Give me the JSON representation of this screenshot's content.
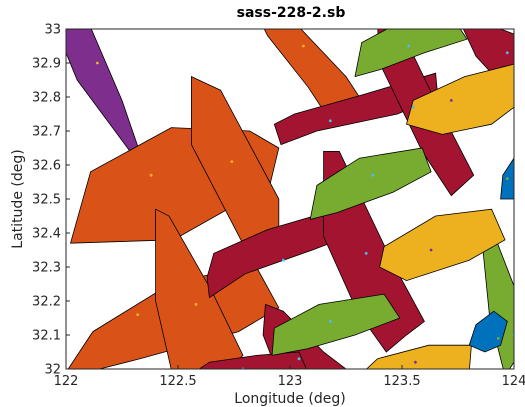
{
  "chart_data": {
    "type": "map",
    "title": "sass-228-2.sb",
    "xlabel": "Longitude (deg)",
    "ylabel": "Latitude (deg)",
    "xlim": [
      122,
      124
    ],
    "ylim": [
      32,
      33
    ],
    "x_ticks": [
      "122",
      "122.5",
      "123",
      "123.5",
      "124"
    ],
    "y_ticks": [
      "32",
      "32.1",
      "32.2",
      "32.3",
      "32.4",
      "32.5",
      "32.6",
      "32.7",
      "32.8",
      "32.9",
      "33"
    ],
    "grid": false,
    "colors": {
      "purple": "#7e2f8e",
      "orange": "#d95319",
      "red": "#a2142f",
      "green": "#77ac30",
      "yellow": "#edb120",
      "blue": "#0072bd"
    },
    "polygons": [
      {
        "color": "purple",
        "center": [
          122.14,
          32.9
        ],
        "points": [
          [
            122,
            33.02
          ],
          [
            122.1,
            33.02
          ],
          [
            122.25,
            32.79
          ],
          [
            122.37,
            32.56
          ],
          [
            122.32,
            32.61
          ],
          [
            122.05,
            32.85
          ],
          [
            122,
            32.93
          ]
        ]
      },
      {
        "color": "orange",
        "center": [
          122.38,
          32.57
        ],
        "points": [
          [
            122.02,
            32.37
          ],
          [
            122.11,
            32.58
          ],
          [
            122.47,
            32.71
          ],
          [
            122.82,
            32.7
          ],
          [
            122.95,
            32.65
          ],
          [
            122.91,
            32.54
          ],
          [
            122.48,
            32.38
          ]
        ]
      },
      {
        "color": "orange",
        "center": [
          122.74,
          32.61
        ],
        "points": [
          [
            122.56,
            32.86
          ],
          [
            122.69,
            32.82
          ],
          [
            122.95,
            32.5
          ],
          [
            122.95,
            32.34
          ],
          [
            122.82,
            32.33
          ],
          [
            122.56,
            32.66
          ]
        ]
      },
      {
        "color": "orange",
        "center": [
          122.32,
          32.16
        ],
        "points": [
          [
            122.01,
            32
          ],
          [
            122.12,
            32.11
          ],
          [
            122.49,
            32.26
          ],
          [
            122.85,
            32.3
          ],
          [
            122.95,
            32.18
          ],
          [
            122.77,
            32.11
          ],
          [
            122.33,
            32.03
          ],
          [
            122.03,
            31.98
          ]
        ]
      },
      {
        "color": "orange",
        "center": [
          122.58,
          32.19
        ],
        "points": [
          [
            122.4,
            32.47
          ],
          [
            122.46,
            32.45
          ],
          [
            122.65,
            32.23
          ],
          [
            122.79,
            32.04
          ],
          [
            122.69,
            31.98
          ],
          [
            122.48,
            31.97
          ],
          [
            122.4,
            32.2
          ]
        ]
      },
      {
        "color": "orange",
        "center": [
          123.06,
          32.95
        ],
        "points": [
          [
            122.87,
            33.02
          ],
          [
            123.02,
            33.02
          ],
          [
            123.25,
            32.86
          ],
          [
            123.31,
            32.8
          ],
          [
            123.17,
            32.74
          ],
          [
            123.08,
            32.83
          ],
          [
            122.9,
            32.98
          ]
        ]
      },
      {
        "color": "red",
        "center": [
          123.18,
          32.73
        ],
        "points": [
          [
            122.93,
            32.72
          ],
          [
            123.02,
            32.75
          ],
          [
            123.29,
            32.8
          ],
          [
            123.65,
            32.87
          ],
          [
            123.66,
            32.8
          ],
          [
            123.48,
            32.75
          ],
          [
            123.12,
            32.7
          ],
          [
            122.96,
            32.66
          ]
        ]
      },
      {
        "color": "red",
        "center": [
          122.97,
          32.32
        ],
        "points": [
          [
            122.63,
            32.27
          ],
          [
            122.66,
            32.34
          ],
          [
            122.9,
            32.41
          ],
          [
            123.21,
            32.47
          ],
          [
            123.3,
            32.4
          ],
          [
            123.1,
            32.35
          ],
          [
            122.8,
            32.28
          ],
          [
            122.64,
            32.21
          ]
        ]
      },
      {
        "color": "red",
        "center": [
          123.34,
          32.34
        ],
        "points": [
          [
            123.15,
            32.64
          ],
          [
            123.22,
            32.64
          ],
          [
            123.46,
            32.31
          ],
          [
            123.6,
            32.14
          ],
          [
            123.52,
            32.1
          ],
          [
            123.43,
            32.05
          ],
          [
            123.3,
            32.17
          ],
          [
            123.15,
            32.39
          ]
        ]
      },
      {
        "color": "red",
        "center": [
          123.55,
          32.77
        ],
        "points": [
          [
            123.39,
            33.02
          ],
          [
            123.48,
            33.02
          ],
          [
            123.64,
            32.8
          ],
          [
            123.82,
            32.57
          ],
          [
            123.72,
            32.51
          ],
          [
            123.59,
            32.64
          ],
          [
            123.4,
            32.9
          ]
        ]
      },
      {
        "color": "red",
        "center": [
          123.04,
          32.03
        ],
        "points": [
          [
            122.89,
            32.19
          ],
          [
            122.97,
            32.17
          ],
          [
            123.15,
            32.05
          ],
          [
            123.25,
            32
          ],
          [
            123.1,
            31.97
          ],
          [
            122.95,
            31.98
          ],
          [
            122.88,
            32.1
          ]
        ]
      },
      {
        "color": "red",
        "center": [
          122.79,
          32
        ],
        "points": [
          [
            122.55,
            31.98
          ],
          [
            122.64,
            32.02
          ],
          [
            122.85,
            32.04
          ],
          [
            123.04,
            32.05
          ],
          [
            123.08,
            31.99
          ],
          [
            122.95,
            31.97
          ]
        ]
      },
      {
        "color": "red",
        "center": [
          123.97,
          32.93
        ],
        "points": [
          [
            123.76,
            33.02
          ],
          [
            123.86,
            33.02
          ],
          [
            124.02,
            32.98
          ],
          [
            124.04,
            32.89
          ],
          [
            123.9,
            32.87
          ],
          [
            123.83,
            32.92
          ]
        ]
      },
      {
        "color": "green",
        "center": [
          123.37,
          32.57
        ],
        "points": [
          [
            123.09,
            32.44
          ],
          [
            123.12,
            32.54
          ],
          [
            123.31,
            32.62
          ],
          [
            123.59,
            32.65
          ],
          [
            123.63,
            32.58
          ],
          [
            123.46,
            32.52
          ],
          [
            123.21,
            32.46
          ]
        ]
      },
      {
        "color": "green",
        "center": [
          123.53,
          32.95
        ],
        "points": [
          [
            123.29,
            32.86
          ],
          [
            123.32,
            32.96
          ],
          [
            123.49,
            33.02
          ],
          [
            123.74,
            33.02
          ],
          [
            123.79,
            32.97
          ],
          [
            123.6,
            32.93
          ],
          [
            123.4,
            32.88
          ]
        ]
      },
      {
        "color": "green",
        "center": [
          123.18,
          32.14
        ],
        "points": [
          [
            122.92,
            32.04
          ],
          [
            122.93,
            32.12
          ],
          [
            123.13,
            32.19
          ],
          [
            123.42,
            32.22
          ],
          [
            123.49,
            32.15
          ],
          [
            123.29,
            32.1
          ],
          [
            123.08,
            32.06
          ]
        ]
      },
      {
        "color": "green",
        "center": [
          124,
          32.1
        ],
        "points": [
          [
            123.86,
            32.36
          ],
          [
            123.92,
            32.38
          ],
          [
            124.02,
            32.21
          ],
          [
            124.02,
            32.04
          ],
          [
            123.96,
            31.98
          ],
          [
            123.89,
            32.16
          ]
        ]
      },
      {
        "color": "yellow",
        "center": [
          123.72,
          32.79
        ],
        "points": [
          [
            123.52,
            32.72
          ],
          [
            123.55,
            32.79
          ],
          [
            123.78,
            32.86
          ],
          [
            124.02,
            32.9
          ],
          [
            124.02,
            32.78
          ],
          [
            123.9,
            32.72
          ],
          [
            123.68,
            32.69
          ]
        ]
      },
      {
        "color": "yellow",
        "center": [
          123.63,
          32.35
        ],
        "points": [
          [
            123.4,
            32.3
          ],
          [
            123.42,
            32.36
          ],
          [
            123.65,
            32.45
          ],
          [
            123.9,
            32.47
          ],
          [
            123.96,
            32.38
          ],
          [
            123.8,
            32.32
          ],
          [
            123.52,
            32.26
          ]
        ]
      },
      {
        "color": "yellow",
        "center": [
          123.56,
          32.02
        ],
        "points": [
          [
            123.31,
            31.98
          ],
          [
            123.39,
            32.03
          ],
          [
            123.62,
            32.07
          ],
          [
            123.81,
            32.07
          ],
          [
            123.8,
            31.99
          ],
          [
            123.6,
            31.97
          ]
        ]
      },
      {
        "color": "blue",
        "center": [
          123.93,
          32.09
        ],
        "points": [
          [
            123.8,
            32.07
          ],
          [
            123.83,
            32.13
          ],
          [
            123.91,
            32.17
          ],
          [
            123.97,
            32.14
          ],
          [
            123.94,
            32.07
          ],
          [
            123.87,
            32.05
          ]
        ]
      },
      {
        "color": "blue",
        "center": [
          123.97,
          32.56
        ],
        "points": [
          [
            123.94,
            32.5
          ],
          [
            123.95,
            32.57
          ],
          [
            124.01,
            32.63
          ],
          [
            124.02,
            32.5
          ]
        ]
      }
    ]
  }
}
